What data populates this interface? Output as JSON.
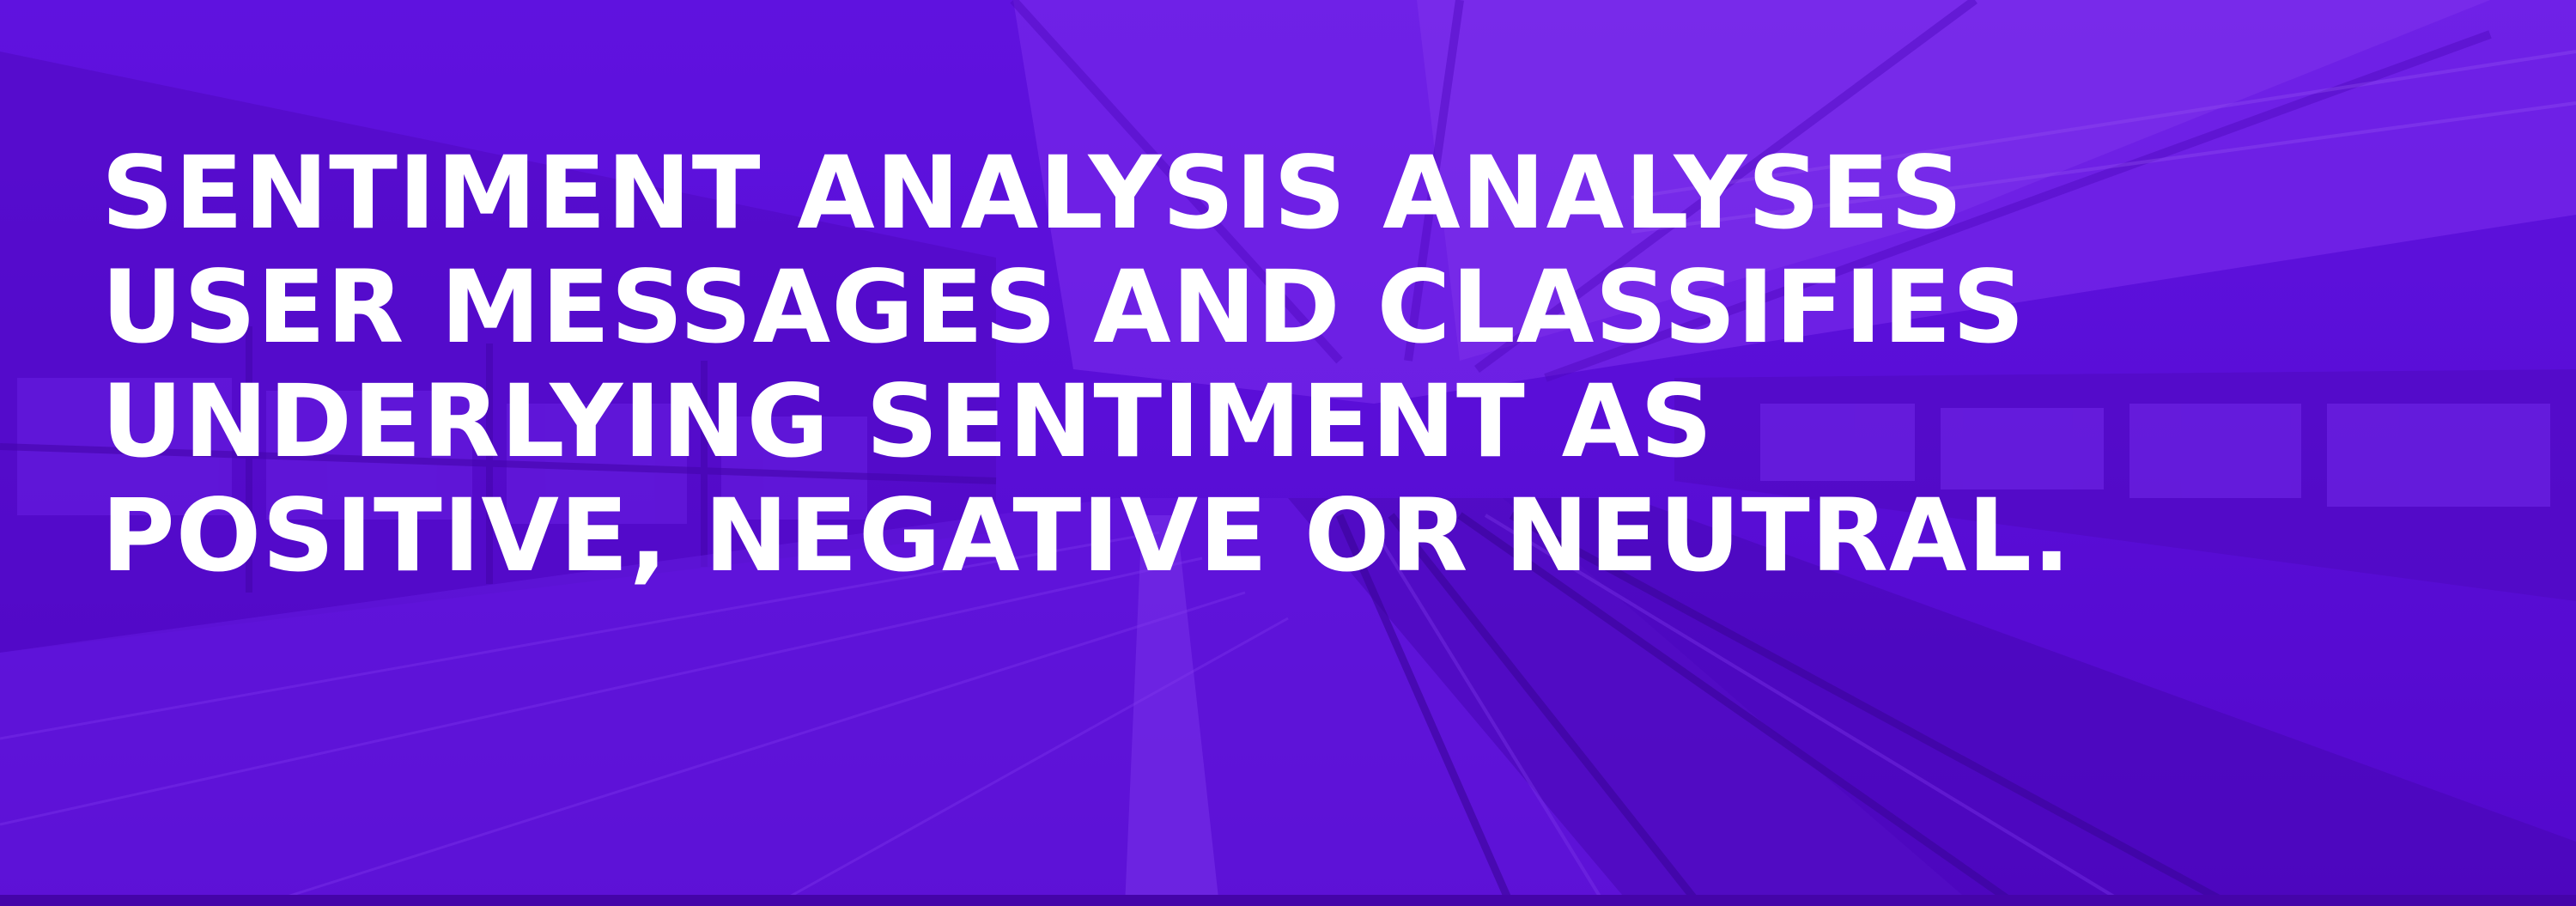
{
  "banner": {
    "background_color": "#5a0ed6",
    "tint_color": "#7b2cf0",
    "text_color": "#ffffff",
    "background_image": "train-station-platform-photo",
    "headline_lines": [
      "SENTIMENT ANALYSIS ANALYSES",
      "USER MESSAGES AND CLASSIFIES",
      "UNDERLYING SENTIMENT AS",
      "POSITIVE, NEGATIVE OR NEUTRAL."
    ]
  }
}
